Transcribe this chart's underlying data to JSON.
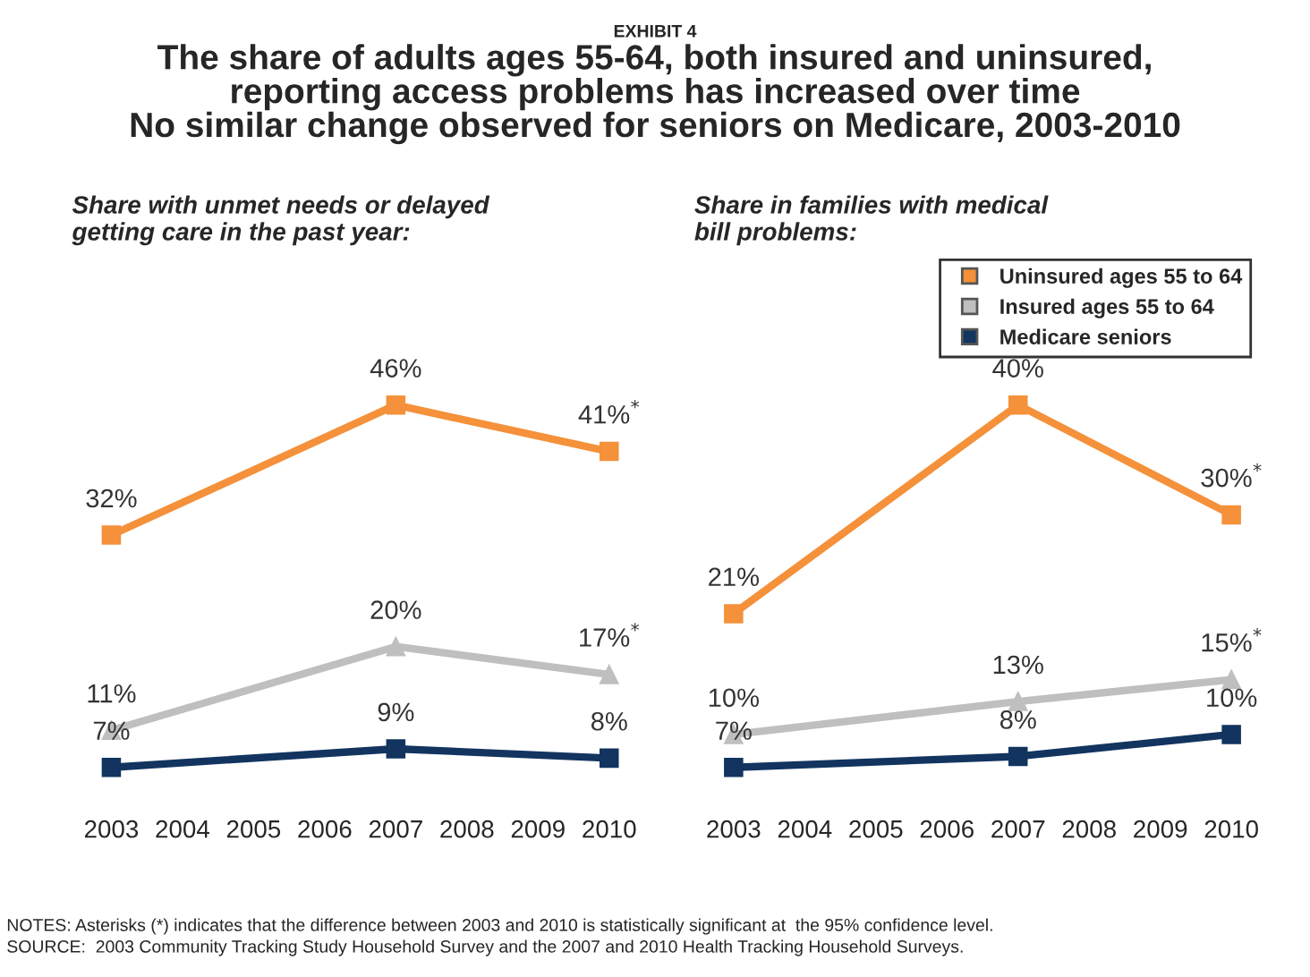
{
  "chart_data": [
    {
      "type": "line",
      "title": "The share of adults ages 55-64, both insured and uninsured,\nreporting access problems has increased over time\nNo similar change observed for seniors on Medicare, 2003-2010",
      "subtitle": "EXHIBIT 4",
      "annotations": [
        "Share with unmet needs or delayed\ngetting care in the past year:"
      ],
      "x": [
        2003,
        2007,
        2010
      ],
      "xlim": [
        2003,
        2010
      ],
      "xticks": [
        2003,
        2004,
        2005,
        2006,
        2007,
        2008,
        2009,
        2010
      ],
      "tick_labels": "x",
      "grid": false,
      "data_labels": true,
      "series": [
        {
          "color": "#f4913a",
          "marker": "square",
          "values": [
            32,
            46,
            41
          ],
          "value_labels": [
            "32%",
            "46%",
            "41%$^{*}$"
          ]
        },
        {
          "color": "#bfbfbf",
          "marker": "triangle",
          "values": [
            11,
            20,
            17
          ],
          "value_labels": [
            "11%",
            "20%",
            "17%$^{*}$"
          ]
        },
        {
          "color": "#12345f",
          "marker": "square",
          "values": [
            7,
            9,
            8
          ],
          "value_labels": [
            "7%",
            "9%",
            "8%"
          ]
        }
      ]
    },
    {
      "type": "line",
      "annotations": [
        "Share in families with medical\nbill problems:",
        "NOTES: Asterisks (*) indicates that the difference between 2003 and 2010 is statistically significant at  the 95% confidence level.",
        "SOURCE:  2003 Community Tracking Study Household Survey and the 2007 and 2010 Health Tracking Household Surveys."
      ],
      "x": [
        2003,
        2007,
        2010
      ],
      "xlim": [
        2003,
        2010
      ],
      "xticks": [
        2003,
        2004,
        2005,
        2006,
        2007,
        2008,
        2009,
        2010
      ],
      "tick_labels": "x",
      "grid": false,
      "legend": "top right",
      "data_labels": true,
      "series": [
        {
          "name": "Uninsured ages 55 to 64",
          "color": "#f4913a",
          "marker": "square",
          "values": [
            21,
            40,
            30
          ],
          "value_labels": [
            "21%",
            "40%",
            "30%$^{*}$"
          ]
        },
        {
          "name": "Insured ages 55 to 64",
          "color": "#bfbfbf",
          "marker": "triangle",
          "values": [
            10,
            13,
            15
          ],
          "value_labels": [
            "10%",
            "13%",
            "15%$^{*}$"
          ]
        },
        {
          "name": "Medicare seniors",
          "color": "#12345f",
          "marker": "square",
          "values": [
            7,
            8,
            10
          ],
          "value_labels": [
            "7%",
            "8%",
            "10%"
          ]
        }
      ]
    }
  ]
}
